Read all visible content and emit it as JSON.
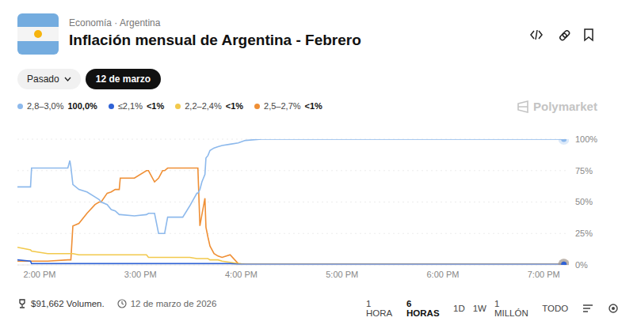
{
  "header": {
    "category": "Economía · Argentina",
    "title": "Inflación mensual de Argentina - Febrero",
    "filters": [
      "Pasado",
      "12 de marzo"
    ],
    "brand": "Polymarket"
  },
  "chart_data": {
    "type": "line",
    "x": [
      13.78,
      13.91,
      13.92,
      14.08,
      14.28,
      14.3,
      14.31,
      14.33,
      14.39,
      14.47,
      14.55,
      14.59,
      14.61,
      14.67,
      14.71,
      14.75,
      14.79,
      14.8,
      14.94,
      15.06,
      15.08,
      15.14,
      15.18,
      15.22,
      15.24,
      15.27,
      15.3,
      15.38,
      15.42,
      15.49,
      15.56,
      15.57,
      15.59,
      15.61,
      15.64,
      15.65,
      15.67,
      15.69,
      15.73,
      15.77,
      15.81,
      15.89,
      15.97,
      16.04,
      16.2,
      16.75,
      17.54,
      18.32,
      19.2
    ],
    "xlim": [
      13.78,
      19.25
    ],
    "xticks": [
      {
        "value": 14,
        "label": "2:00 PM"
      },
      {
        "value": 15,
        "label": "3:00 PM"
      },
      {
        "value": 16,
        "label": "4:00 PM"
      },
      {
        "value": 17,
        "label": "5:00 PM"
      },
      {
        "value": 18,
        "label": "6:00 PM"
      },
      {
        "value": 19,
        "label": "7:00 PM"
      }
    ],
    "ylim": [
      0,
      100
    ],
    "yticks": [
      {
        "value": 0,
        "label": "0%"
      },
      {
        "value": 25,
        "label": "25%"
      },
      {
        "value": 50,
        "label": "50%"
      },
      {
        "value": 75,
        "label": "75%"
      },
      {
        "value": 100,
        "label": "100%"
      }
    ],
    "grid": true,
    "legend": "top-left",
    "series": [
      {
        "name": "2,8–3,0%",
        "color": "#8db9ec",
        "legend_value": "100,0%",
        "values": [
          62,
          62,
          77,
          77,
          77,
          83,
          78,
          64,
          60,
          58,
          54,
          52,
          50,
          48,
          44,
          43,
          40,
          40,
          39,
          40,
          41,
          41,
          25,
          25,
          25,
          38,
          38,
          38,
          38,
          47,
          57,
          57,
          60,
          66,
          72,
          85,
          87,
          91,
          93,
          94,
          95,
          96,
          97,
          99,
          100,
          100,
          100,
          100,
          100
        ]
      },
      {
        "name": "≤2,1%",
        "color": "#2f62d6",
        "legend_value": "<1%",
        "values": [
          4,
          3,
          1,
          1,
          1,
          1,
          1,
          1,
          1,
          1,
          1,
          1,
          1,
          1,
          1,
          1,
          1,
          1,
          1,
          1,
          1,
          1,
          1,
          1,
          1,
          1,
          1,
          1,
          1,
          1,
          1,
          1,
          1,
          1,
          1,
          1,
          1,
          1,
          1,
          1,
          1,
          1,
          0.5,
          0.5,
          0.5,
          0.5,
          0.5,
          0.5,
          0.5
        ]
      },
      {
        "name": "2,2–2,4%",
        "color": "#f2c94c",
        "legend_value": "<1%",
        "values": [
          14,
          12,
          11,
          9,
          9,
          9,
          9,
          9,
          8,
          8,
          8,
          8,
          8,
          8,
          8,
          8,
          8,
          8,
          8,
          8,
          6,
          6,
          6,
          6,
          6,
          6,
          6,
          6,
          6,
          6,
          5,
          5,
          5,
          5,
          5,
          5,
          5,
          4,
          4,
          4,
          3,
          2,
          1,
          0.5,
          0.5,
          0.5,
          0.5,
          0.5,
          0.5
        ]
      },
      {
        "name": "2,5–2,7%",
        "color": "#ef8f35",
        "legend_value": "<1%",
        "values": [
          3,
          3,
          3,
          3,
          4,
          4,
          4,
          31,
          33,
          41,
          48,
          50,
          50,
          57,
          58,
          60,
          60,
          69,
          69,
          75,
          75,
          66,
          69,
          75,
          75,
          77,
          77,
          77,
          77,
          77,
          77,
          77,
          31,
          40,
          53,
          30,
          22,
          15,
          9,
          7,
          6,
          8,
          1,
          0.5,
          0.5,
          0.5,
          0.5,
          0.5,
          0.5
        ]
      }
    ]
  },
  "footer": {
    "volume": "$91,662 Volumen.",
    "date": "12 de marzo de 2026",
    "ranges": [
      "1 HORA",
      "6 HORAS",
      "1D",
      "1W",
      "1 MILLÓN",
      "TODO"
    ],
    "active_range": "6 HORAS"
  }
}
